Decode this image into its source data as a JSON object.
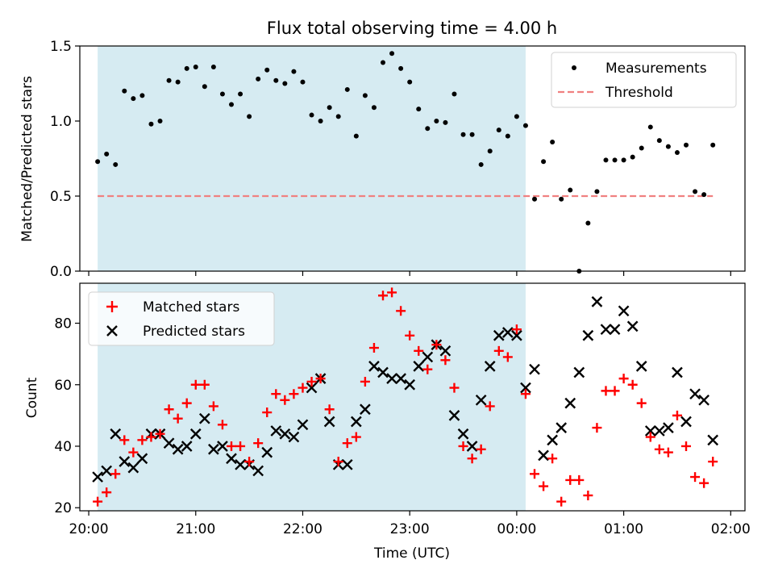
{
  "figure": {
    "title": "Flux total observing time = 4.00 h",
    "xlabel": "Time (UTC)",
    "x_ticks": [
      "20:00",
      "21:00",
      "22:00",
      "23:00",
      "00:00",
      "01:00",
      "02:00"
    ]
  },
  "colors": {
    "shade": "#add8e6",
    "measurements": "#000000",
    "threshold": "#f08080",
    "matched": "#ff0000",
    "predicted": "#000000"
  },
  "chart_data": [
    {
      "type": "scatter",
      "ylabel": "Matched/Predicted stars",
      "xlim": [
        "19:55",
        "02:08"
      ],
      "ylim": [
        0,
        1.5
      ],
      "y_ticks": [
        "0.0",
        "0.5",
        "1.0",
        "1.5"
      ],
      "shaded_span": [
        "20:05",
        "00:05"
      ],
      "legend": {
        "location": "upper right",
        "entries": [
          "Measurements",
          "Threshold"
        ]
      },
      "threshold": {
        "name": "Threshold",
        "value": 0.5,
        "x_range": [
          "20:05",
          "01:50"
        ]
      },
      "series": [
        {
          "name": "Measurements",
          "x": [
            "20:05",
            "20:10",
            "20:15",
            "20:20",
            "20:25",
            "20:30",
            "20:35",
            "20:40",
            "20:45",
            "20:50",
            "20:55",
            "21:00",
            "21:05",
            "21:10",
            "21:15",
            "21:20",
            "21:25",
            "21:30",
            "21:35",
            "21:40",
            "21:45",
            "21:50",
            "21:55",
            "22:00",
            "22:05",
            "22:10",
            "22:15",
            "22:20",
            "22:25",
            "22:30",
            "22:35",
            "22:40",
            "22:45",
            "22:50",
            "22:55",
            "23:00",
            "23:05",
            "23:10",
            "23:15",
            "23:20",
            "23:25",
            "23:30",
            "23:35",
            "23:40",
            "23:45",
            "23:50",
            "23:55",
            "00:00",
            "00:05",
            "00:10",
            "00:15",
            "00:20",
            "00:25",
            "00:30",
            "00:35",
            "00:40",
            "00:45",
            "00:50",
            "00:55",
            "01:00",
            "01:05",
            "01:10",
            "01:15",
            "01:20",
            "01:25",
            "01:30",
            "01:35",
            "01:40",
            "01:45",
            "01:50"
          ],
          "y": [
            0.73,
            0.78,
            0.71,
            1.2,
            1.15,
            1.17,
            0.98,
            1.0,
            1.27,
            1.26,
            1.35,
            1.36,
            1.23,
            1.36,
            1.18,
            1.11,
            1.18,
            1.03,
            1.28,
            1.34,
            1.27,
            1.25,
            1.33,
            1.26,
            1.04,
            1.0,
            1.09,
            1.03,
            1.21,
            0.9,
            1.17,
            1.09,
            1.39,
            1.45,
            1.35,
            1.26,
            1.08,
            0.95,
            1.0,
            0.99,
            1.18,
            0.91,
            0.91,
            0.71,
            0.8,
            0.94,
            0.9,
            1.03,
            0.97,
            0.48,
            0.73,
            0.86,
            0.48,
            0.54,
            0.0,
            0.32,
            0.53,
            0.74,
            0.74,
            0.74,
            0.76,
            0.82,
            0.96,
            0.87,
            0.83,
            0.79,
            0.84,
            0.53,
            0.51,
            0.84
          ]
        }
      ]
    },
    {
      "type": "scatter",
      "ylabel": "Count",
      "xlim": [
        "19:55",
        "02:08"
      ],
      "ylim": [
        19,
        93
      ],
      "y_ticks": [
        "20",
        "40",
        "60",
        "80"
      ],
      "shaded_span": [
        "20:05",
        "00:05"
      ],
      "legend": {
        "location": "upper left",
        "entries": [
          "Matched stars",
          "Predicted stars"
        ]
      },
      "series": [
        {
          "name": "Matched stars",
          "x": [
            "20:05",
            "20:10",
            "20:15",
            "20:20",
            "20:25",
            "20:30",
            "20:35",
            "20:40",
            "20:45",
            "20:50",
            "20:55",
            "21:00",
            "21:05",
            "21:10",
            "21:15",
            "21:20",
            "21:25",
            "21:30",
            "21:35",
            "21:40",
            "21:45",
            "21:50",
            "21:55",
            "22:00",
            "22:05",
            "22:10",
            "22:15",
            "22:20",
            "22:25",
            "22:30",
            "22:35",
            "22:40",
            "22:45",
            "22:50",
            "22:55",
            "23:00",
            "23:05",
            "23:10",
            "23:15",
            "23:20",
            "23:25",
            "23:30",
            "23:35",
            "23:40",
            "23:45",
            "23:50",
            "23:55",
            "00:00",
            "00:05",
            "00:10",
            "00:15",
            "00:20",
            "00:25",
            "00:30",
            "00:35",
            "00:40",
            "00:45",
            "00:50",
            "00:55",
            "01:00",
            "01:05",
            "01:10",
            "01:15",
            "01:20",
            "01:25",
            "01:30",
            "01:35",
            "01:40",
            "01:45",
            "01:50"
          ],
          "y": [
            22,
            25,
            31,
            42,
            38,
            42,
            43,
            44,
            52,
            49,
            54,
            60,
            60,
            53,
            47,
            40,
            40,
            35,
            41,
            51,
            57,
            55,
            57,
            59,
            61,
            62,
            52,
            35,
            41,
            43,
            61,
            72,
            89,
            90,
            84,
            76,
            71,
            65,
            73,
            68,
            59,
            40,
            36,
            39,
            53,
            71,
            69,
            78,
            57,
            31,
            27,
            36,
            22,
            29,
            29,
            24,
            46,
            58,
            58,
            62,
            60,
            54,
            43,
            39,
            38,
            50,
            40,
            30,
            28,
            35
          ]
        },
        {
          "name": "Predicted stars",
          "x": [
            "20:05",
            "20:10",
            "20:15",
            "20:20",
            "20:25",
            "20:30",
            "20:35",
            "20:40",
            "20:45",
            "20:50",
            "20:55",
            "21:00",
            "21:05",
            "21:10",
            "21:15",
            "21:20",
            "21:25",
            "21:30",
            "21:35",
            "21:40",
            "21:45",
            "21:50",
            "21:55",
            "22:00",
            "22:05",
            "22:10",
            "22:15",
            "22:20",
            "22:25",
            "22:30",
            "22:35",
            "22:40",
            "22:45",
            "22:50",
            "22:55",
            "23:00",
            "23:05",
            "23:10",
            "23:15",
            "23:20",
            "23:25",
            "23:30",
            "23:35",
            "23:40",
            "23:45",
            "23:50",
            "23:55",
            "00:00",
            "00:05",
            "00:10",
            "00:15",
            "00:20",
            "00:25",
            "00:30",
            "00:35",
            "00:40",
            "00:45",
            "00:50",
            "00:55",
            "01:00",
            "01:05",
            "01:10",
            "01:15",
            "01:20",
            "01:25",
            "01:30",
            "01:35",
            "01:40",
            "01:45",
            "01:50"
          ],
          "y": [
            30,
            32,
            44,
            35,
            33,
            36,
            44,
            44,
            41,
            39,
            40,
            44,
            49,
            39,
            40,
            36,
            34,
            34,
            32,
            38,
            45,
            44,
            43,
            47,
            59,
            62,
            48,
            34,
            34,
            48,
            52,
            66,
            64,
            62,
            62,
            60,
            66,
            69,
            73,
            71,
            50,
            44,
            40,
            55,
            66,
            76,
            77,
            76,
            59,
            65,
            37,
            42,
            46,
            54,
            64,
            76,
            87,
            78,
            78,
            84,
            79,
            66,
            45,
            45,
            46,
            64,
            48,
            57,
            55,
            42
          ]
        }
      ]
    }
  ]
}
